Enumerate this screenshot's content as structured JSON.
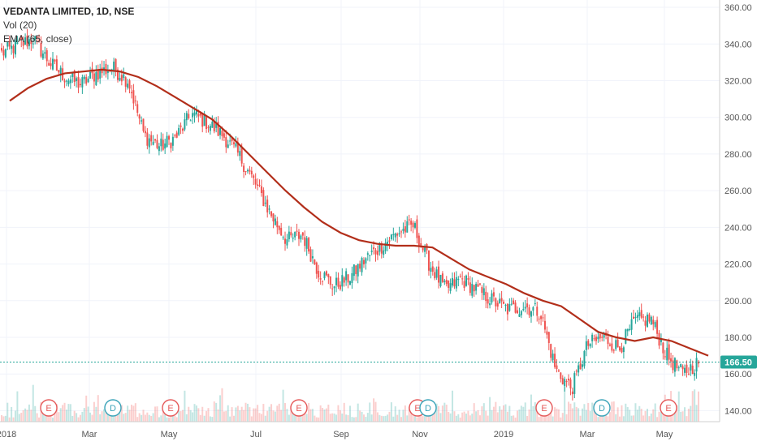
{
  "legend": {
    "title": "VEDANTA LIMITED, 1D, NSE",
    "volume": "Vol (20)",
    "ema": "EMA (65, close)"
  },
  "price_label": "166.50",
  "chart_data": {
    "type": "candlestick",
    "y_ticks": [
      "140.00",
      "160.00",
      "180.00",
      "200.00",
      "220.00",
      "240.00",
      "260.00",
      "280.00",
      "300.00",
      "320.00",
      "340.00",
      "360.00"
    ],
    "ylim": [
      134,
      364
    ],
    "x_ticks": [
      "2018",
      "Mar",
      "May",
      "Jul",
      "Sep",
      "Nov",
      "2019",
      "Mar",
      "May"
    ],
    "last_price": 166.5,
    "ema_series": [
      309,
      316,
      321,
      324,
      325,
      326,
      325,
      322,
      317,
      311,
      305,
      299,
      290,
      280,
      270,
      260,
      251,
      243,
      237,
      233,
      231,
      230,
      230,
      229,
      223,
      217,
      213,
      209,
      204,
      200,
      197,
      190,
      183,
      180,
      178,
      180,
      178,
      174,
      170
    ],
    "close_series": [
      335,
      339,
      343,
      330,
      322,
      318,
      324,
      327,
      320,
      290,
      284,
      289,
      302,
      297,
      290,
      279,
      264,
      247,
      233,
      236,
      216,
      208,
      213,
      223,
      230,
      237,
      241,
      220,
      206,
      212,
      206,
      200,
      195,
      197,
      194,
      162,
      152,
      176,
      180,
      174,
      189,
      190,
      170,
      160,
      166.5
    ],
    "events": [
      {
        "letter": "E",
        "type": "earnings"
      },
      {
        "letter": "D",
        "type": "dividend"
      },
      {
        "letter": "E",
        "type": "earnings"
      },
      {
        "letter": "E",
        "type": "earnings"
      },
      {
        "letter": "E",
        "type": "earnings"
      },
      {
        "letter": "D",
        "type": "dividend"
      },
      {
        "letter": "E",
        "type": "earnings"
      },
      {
        "letter": "D",
        "type": "dividend"
      },
      {
        "letter": "E",
        "type": "earnings"
      }
    ],
    "colors": {
      "up": "#26a69a",
      "down": "#ef5350",
      "ema": "#b22e1a",
      "price_tag": "#26a69a",
      "earnings": "#e55a5a",
      "dividend": "#3aa3b8"
    }
  }
}
